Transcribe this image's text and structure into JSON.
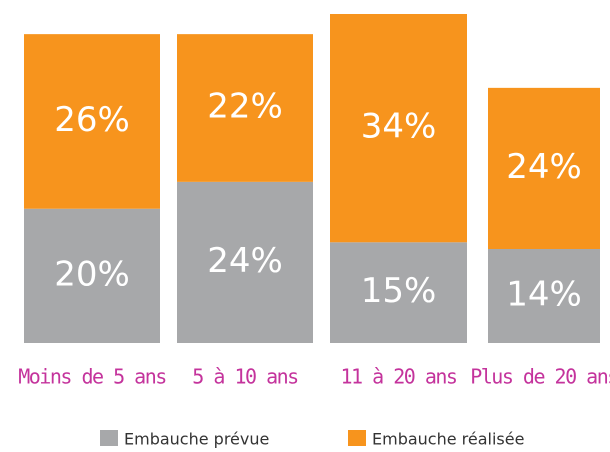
{
  "chart_data": {
    "type": "stacked_bar",
    "categories": [
      "Moins de 5 ans",
      "5 à 10 ans",
      "11 à 20 ans",
      "Plus de 20 ans"
    ],
    "series": [
      {
        "name": "Embauche prévue",
        "color": "#a7a8aa",
        "values": [
          20,
          24,
          15,
          14
        ],
        "value_labels": [
          "20%",
          "24%",
          "15%",
          "14%"
        ]
      },
      {
        "name": "Embauche réalisée",
        "color": "#f7941d",
        "values": [
          26,
          22,
          34,
          24
        ],
        "value_labels": [
          "26%",
          "22%",
          "34%",
          "24%"
        ]
      }
    ],
    "category_color": "#c4339c"
  }
}
